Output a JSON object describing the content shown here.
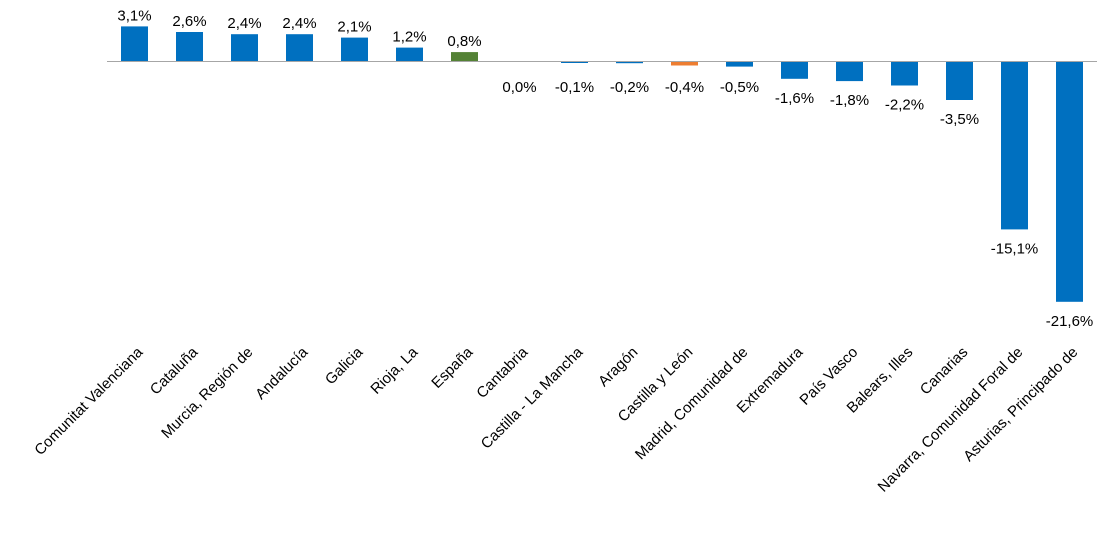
{
  "chart_data": {
    "type": "bar",
    "title": "",
    "xlabel": "",
    "ylabel": "",
    "categories": [
      "Comunitat Valenciana",
      "Cataluña",
      "Murcia, Región de",
      "Andalucía",
      "Galicia",
      "Rioja, La",
      "España",
      "Cantabria",
      "Castilla - La Mancha",
      "Aragón",
      "Castilla y León",
      "Madrid, Comunidad de",
      "Extremadura",
      "País Vasco",
      "Balears, Illes",
      "Canarias",
      "Navarra, Comunidad Foral de",
      "Asturias, Principado de"
    ],
    "values": [
      3.1,
      2.6,
      2.4,
      2.4,
      2.1,
      1.2,
      0.8,
      0.0,
      -0.1,
      -0.2,
      -0.4,
      -0.5,
      -1.6,
      -1.8,
      -2.2,
      -3.5,
      -15.1,
      -21.6
    ],
    "value_labels": [
      "3,1%",
      "2,6%",
      "2,4%",
      "2,4%",
      "2,1%",
      "1,2%",
      "0,8%",
      "0,0%",
      "-0,1%",
      "-0,2%",
      "-0,4%",
      "-0,5%",
      "-1,6%",
      "-1,8%",
      "-2,2%",
      "-3,5%",
      "-15,1%",
      "-21,6%"
    ],
    "colors": {
      "default": "#0070C0",
      "highlight_green": "#548235",
      "highlight_orange": "#ED7D31"
    },
    "highlight": {
      "España": "highlight_green",
      "Castilla y León": "highlight_orange"
    },
    "ylim": [
      -21.6,
      3.1
    ],
    "grid": false,
    "legend": "none",
    "baseline": "axis line at zero"
  }
}
